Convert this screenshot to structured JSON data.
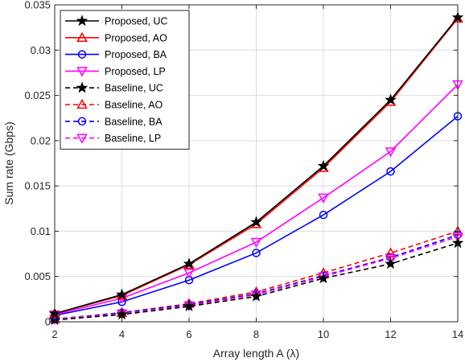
{
  "chart_data": {
    "type": "line",
    "xlabel": "Array length A (λ)",
    "ylabel": "Sum rate (Gbps)",
    "x": [
      2,
      4,
      6,
      8,
      10,
      12,
      14
    ],
    "xlim": [
      2,
      14
    ],
    "ylim": [
      0,
      0.035
    ],
    "xticks": [
      "2",
      "4",
      "6",
      "8",
      "10",
      "12",
      "14"
    ],
    "yticks": [
      "0",
      "0.005",
      "0.01",
      "0.015",
      "0.02",
      "0.025",
      "0.03",
      "0.035"
    ],
    "grid": true,
    "legend_position": "top-left",
    "series": [
      {
        "name": "Proposed, UC",
        "color": "#000000",
        "style": "solid",
        "marker": "star",
        "values": [
          0.0009,
          0.003,
          0.0064,
          0.011,
          0.0172,
          0.0245,
          0.0336
        ]
      },
      {
        "name": "Proposed, AO",
        "color": "#ff0000",
        "style": "solid",
        "marker": "triangle-up",
        "values": [
          0.0009,
          0.0029,
          0.0063,
          0.0108,
          0.017,
          0.0243,
          0.0335
        ]
      },
      {
        "name": "Proposed, BA",
        "color": "#0000ff",
        "style": "solid",
        "marker": "circle",
        "values": [
          0.0007,
          0.0022,
          0.0046,
          0.0076,
          0.0118,
          0.0166,
          0.0227
        ]
      },
      {
        "name": "Proposed, LP",
        "color": "#ff00ff",
        "style": "solid",
        "marker": "triangle-down",
        "values": [
          0.0008,
          0.0026,
          0.0054,
          0.0088,
          0.0137,
          0.0188,
          0.0262
        ]
      },
      {
        "name": "Baseline, UC",
        "color": "#000000",
        "style": "dashed",
        "marker": "star",
        "values": [
          0.0002,
          0.0008,
          0.0017,
          0.0028,
          0.0048,
          0.0064,
          0.0087
        ]
      },
      {
        "name": "Baseline, AO",
        "color": "#ff0000",
        "style": "dashed",
        "marker": "triangle-up",
        "values": [
          0.0003,
          0.001,
          0.002,
          0.0033,
          0.0054,
          0.0076,
          0.01
        ]
      },
      {
        "name": "Baseline, BA",
        "color": "#0000ff",
        "style": "dashed",
        "marker": "circle",
        "values": [
          0.0003,
          0.001,
          0.0019,
          0.0031,
          0.0051,
          0.0071,
          0.0096
        ]
      },
      {
        "name": "Baseline, LP",
        "color": "#ff00ff",
        "style": "dashed",
        "marker": "triangle-down",
        "values": [
          0.0003,
          0.0009,
          0.0018,
          0.003,
          0.005,
          0.007,
          0.0094
        ]
      }
    ]
  }
}
